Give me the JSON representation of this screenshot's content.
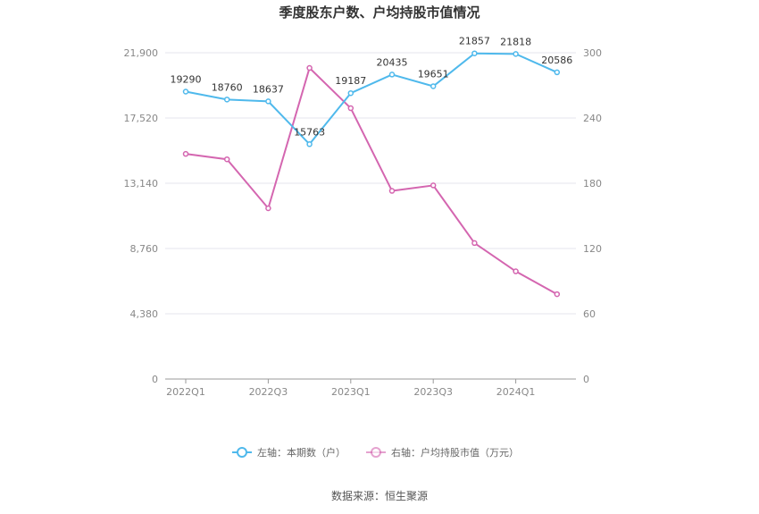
{
  "chart_data": {
    "type": "line",
    "title": "季度股东户数、户均持股市值情况",
    "categories": [
      "2022Q1",
      "2022Q2",
      "2022Q3",
      "2022Q4",
      "2023Q1",
      "2023Q2",
      "2023Q3",
      "2023Q4",
      "2024Q1",
      "2024Q2"
    ],
    "x_tick_labels": [
      "2022Q1",
      "2022Q3",
      "2023Q1",
      "2023Q3",
      "2024Q1"
    ],
    "y_left": {
      "ticks": [
        "0",
        "4,380",
        "8,760",
        "13,140",
        "17,520",
        "21,900"
      ],
      "range": [
        0,
        21900
      ]
    },
    "y_right": {
      "ticks": [
        "0",
        "60",
        "120",
        "180",
        "240",
        "300"
      ],
      "range": [
        0,
        300
      ]
    },
    "grid": true,
    "legend_position": "bottom",
    "series": [
      {
        "name": "左轴：本期数（户）",
        "axis": "left",
        "color": "#4fb9ec",
        "values": [
          19290,
          18760,
          18637,
          15763,
          19187,
          20435,
          19651,
          21857,
          21818,
          20586
        ],
        "labels": [
          "19290",
          "18760",
          "18637",
          "15763",
          "19187",
          "20435",
          "19651",
          "21857",
          "21818",
          "20586"
        ]
      },
      {
        "name": "右轴：户均持股市值（万元）",
        "axis": "right",
        "color": "#d466b0",
        "values": [
          207,
          202,
          157,
          286,
          249,
          173,
          178,
          125,
          99,
          78
        ]
      }
    ]
  },
  "source": "数据来源：恒生聚源"
}
